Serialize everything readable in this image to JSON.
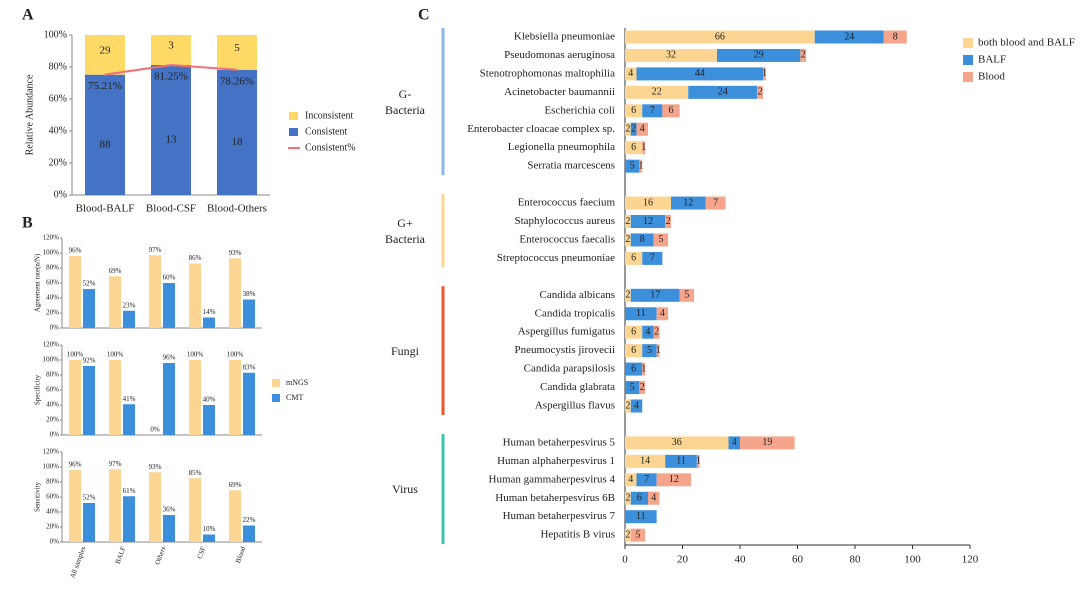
{
  "panel_labels": [
    "A",
    "B",
    "C"
  ],
  "chart_data": [
    {
      "type": "stacked_percent_bar",
      "ylabel": "Relative Abundance",
      "categories": [
        "Blood-BALF",
        "Blood-CSF",
        "Blood-Others"
      ],
      "series": [
        {
          "name": "Inconsistent",
          "color": "#ffd966",
          "values": [
            29,
            3,
            5
          ]
        },
        {
          "name": "Consistent",
          "color": "#4472c4",
          "values": [
            88,
            13,
            18
          ]
        },
        {
          "name": "Consistent%",
          "type": "line",
          "color": "#f07078",
          "values": [
            75.21,
            81.25,
            78.26
          ],
          "value_labels": [
            "75.21%",
            "81.25%",
            "78.26%"
          ]
        }
      ],
      "ylim": [
        0,
        100
      ],
      "yticks": [
        {
          "value": 0,
          "label": "0%"
        },
        {
          "value": 20,
          "label": "20%"
        },
        {
          "value": 40,
          "label": "40%"
        },
        {
          "value": 60,
          "label": "60%"
        },
        {
          "value": 80,
          "label": "80%"
        },
        {
          "value": 100,
          "label": "100%"
        }
      ]
    },
    {
      "type": "grouped_bar_panels",
      "categories": [
        "All samples",
        "BALF",
        "Others",
        "CSF",
        "Blood"
      ],
      "series": [
        {
          "name": "mNGS",
          "color": "#fdd593"
        },
        {
          "name": "CMT",
          "color": "#3b8fdb"
        }
      ],
      "ylim": [
        0,
        120
      ],
      "yticks": [
        {
          "value": 0,
          "label": "0%"
        },
        {
          "value": 20,
          "label": "20%"
        },
        {
          "value": 40,
          "label": "40%"
        },
        {
          "value": 60,
          "label": "60%"
        },
        {
          "value": 80,
          "label": "80%"
        },
        {
          "value": 100,
          "label": "100%"
        },
        {
          "value": 120,
          "label": "120%"
        }
      ],
      "panels": [
        {
          "ylabel": "Agreement rate(n/N)",
          "values": [
            [
              96,
              69,
              97,
              86,
              93
            ],
            [
              52,
              23,
              60,
              14,
              38
            ]
          ],
          "value_labels": [
            [
              "96%",
              "69%",
              "97%",
              "86%",
              "93%"
            ],
            [
              "52%",
              "23%",
              "60%",
              "14%",
              "38%"
            ]
          ]
        },
        {
          "ylabel": "Specificity",
          "values": [
            [
              100,
              100,
              0,
              100,
              100
            ],
            [
              92,
              41,
              96,
              40,
              83
            ]
          ],
          "value_labels": [
            [
              "100%",
              "100%",
              "0%",
              "100%",
              "100%"
            ],
            [
              "92%",
              "41%",
              "96%",
              "40%",
              "83%"
            ]
          ]
        },
        {
          "ylabel": "Sensitivity",
          "values": [
            [
              96,
              97,
              93,
              85,
              69
            ],
            [
              52,
              61,
              36,
              10,
              22
            ]
          ],
          "value_labels": [
            [
              "96%",
              "97%",
              "93%",
              "85%",
              "69%"
            ],
            [
              "52%",
              "61%",
              "36%",
              "10%",
              "22%"
            ]
          ]
        }
      ]
    },
    {
      "type": "stacked_hbar",
      "groups": [
        {
          "name": "G-\nBacteria",
          "color": "#8db8e6",
          "categories": [
            "Klebsiella pneumoniae",
            "Pseudomonas aeruginosa",
            "Stenotrophomonas maltophilia",
            "Acinetobacter baumannii",
            "Escherichia coli",
            "Enterobacter cloacae complex sp.",
            "Legionella pneumophila",
            "Serratia marcescens"
          ]
        },
        {
          "name": "G+\nBacteria",
          "color": "#fdd593",
          "categories": [
            "Enterococcus faecium",
            "Staphylococcus aureus",
            "Enterococcus faecalis",
            "Streptococcus pneumoniae"
          ]
        },
        {
          "name": "Fungi",
          "color": "#e8562a",
          "categories": [
            "Candida albicans",
            "Candida tropicalis",
            "Aspergillus fumigatus",
            "Pneumocystis jirovecii",
            "Candida parapsilosis",
            "Candida glabrata",
            "Aspergillus flavus"
          ]
        },
        {
          "name": "Virus",
          "color": "#3cc6b0",
          "categories": [
            "Human betaherpesvirus 5",
            "Human alphaherpesvirus 1",
            "Human gammaherpesvirus 4",
            "Human betaherpesvirus 6B",
            "Human betaherpesvirus 7",
            "Hepatitis B virus"
          ]
        }
      ],
      "series": [
        {
          "name": "both blood and BALF",
          "color": "#fdd593",
          "values": [
            66,
            32,
            4,
            22,
            6,
            2,
            6,
            null,
            16,
            2,
            2,
            6,
            2,
            null,
            6,
            6,
            null,
            null,
            2,
            36,
            14,
            4,
            2,
            null,
            2
          ]
        },
        {
          "name": "BALF",
          "color": "#3b8fdb",
          "values": [
            24,
            29,
            44,
            24,
            7,
            2,
            null,
            5,
            12,
            12,
            8,
            7,
            17,
            11,
            4,
            5,
            6,
            5,
            4,
            4,
            11,
            7,
            6,
            11,
            null
          ]
        },
        {
          "name": "Blood",
          "color": "#f5a58b",
          "values": [
            8,
            2,
            1,
            2,
            6,
            4,
            1,
            1,
            7,
            2,
            5,
            null,
            5,
            4,
            2,
            1,
            1,
            2,
            null,
            19,
            1,
            12,
            4,
            null,
            5
          ]
        }
      ],
      "xlim": [
        0,
        120
      ],
      "xticks": [
        0,
        20,
        40,
        60,
        80,
        100,
        120
      ]
    }
  ]
}
